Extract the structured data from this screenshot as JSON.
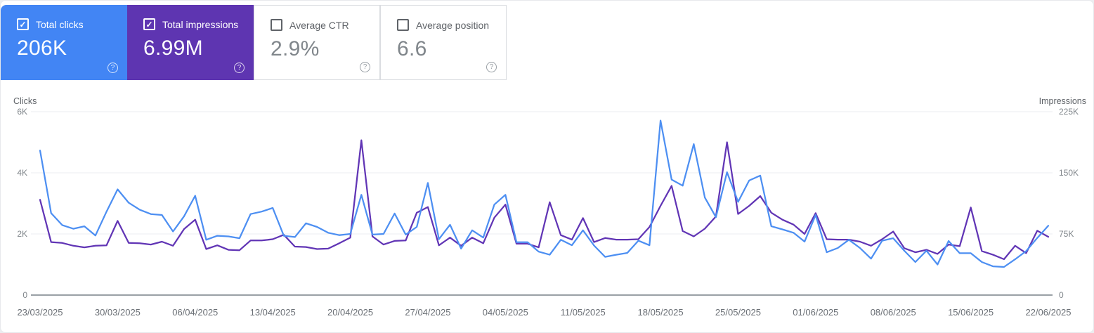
{
  "app": "Search Console Performance",
  "icons": {
    "help": "?",
    "check": "✓"
  },
  "colors": {
    "clicks_card_bg": "#4285f4",
    "impressions_card_bg": "#5e35b1",
    "clicks_line": "#4d8ff2",
    "impressions_line": "#6135b5",
    "gridline": "#ebedf0",
    "axis_line": "#9aa0a6",
    "tick_label": "#80868b",
    "date_label": "#6a6f75",
    "axis_title": "#5f6368"
  },
  "cards": [
    {
      "id": "total-clicks",
      "label": "Total clicks",
      "value": "206K",
      "checked": true,
      "style": "colored",
      "bg": "#4285f4"
    },
    {
      "id": "total-impressions",
      "label": "Total impressions",
      "value": "6.99M",
      "checked": true,
      "style": "colored",
      "bg": "#5e35b1"
    },
    {
      "id": "average-ctr",
      "label": "Average CTR",
      "value": "2.9%",
      "checked": false,
      "style": "plain",
      "bg": "#ffffff"
    },
    {
      "id": "average-position",
      "label": "Average position",
      "value": "6.6",
      "checked": false,
      "style": "plain",
      "bg": "#ffffff"
    }
  ],
  "chart_data": {
    "type": "line",
    "title": "",
    "grid": true,
    "legend_position": "none",
    "x_labels": [
      "23/03/2025",
      "30/03/2025",
      "06/04/2025",
      "13/04/2025",
      "20/04/2025",
      "27/04/2025",
      "04/05/2025",
      "11/05/2025",
      "18/05/2025",
      "25/05/2025",
      "01/06/2025",
      "08/06/2025",
      "15/06/2025",
      "22/06/2025"
    ],
    "left_axis": {
      "title": "Clicks",
      "ticks": [
        "0",
        "2K",
        "4K",
        "6K"
      ],
      "min": 0,
      "max": 6000
    },
    "right_axis": {
      "title": "Impressions",
      "ticks": [
        "0",
        "75K",
        "150K",
        "225K"
      ],
      "min": 0,
      "max": 225000
    },
    "series": [
      {
        "name": "Clicks",
        "axis": "left",
        "color": "#4d8ff2",
        "values": [
          4730,
          2680,
          2290,
          2170,
          2250,
          1950,
          2730,
          3460,
          3020,
          2790,
          2650,
          2620,
          2080,
          2580,
          3250,
          1810,
          1940,
          1920,
          1860,
          2650,
          2730,
          2850,
          1940,
          1900,
          2350,
          2230,
          2040,
          1960,
          2000,
          3280,
          1980,
          2000,
          2670,
          1980,
          2230,
          3670,
          1830,
          2300,
          1520,
          2120,
          1880,
          2960,
          3280,
          1730,
          1730,
          1420,
          1320,
          1810,
          1630,
          2120,
          1620,
          1250,
          1320,
          1380,
          1780,
          1630,
          5710,
          3780,
          3580,
          4940,
          3190,
          2550,
          4020,
          3050,
          3750,
          3910,
          2250,
          2150,
          2040,
          1750,
          2620,
          1400,
          1540,
          1810,
          1540,
          1190,
          1780,
          1860,
          1450,
          1080,
          1450,
          1000,
          1770,
          1370,
          1370,
          1080,
          940,
          920,
          1170,
          1440,
          1870,
          2270
        ]
      },
      {
        "name": "Impressions",
        "axis": "right",
        "color": "#6135b5",
        "values": [
          117000,
          65000,
          64000,
          60500,
          58500,
          60500,
          61000,
          91000,
          64000,
          63500,
          62000,
          65500,
          60500,
          81000,
          92500,
          56500,
          61000,
          55500,
          55000,
          67000,
          67000,
          68500,
          74000,
          59500,
          59000,
          56500,
          57000,
          63500,
          70500,
          190000,
          72000,
          62000,
          66500,
          67000,
          101000,
          108000,
          61000,
          70500,
          60500,
          70500,
          63500,
          95000,
          111000,
          63000,
          63000,
          58500,
          114000,
          73500,
          68000,
          94500,
          65000,
          70000,
          68000,
          68000,
          68500,
          83500,
          109500,
          134000,
          78500,
          72000,
          81500,
          96500,
          187500,
          99500,
          109500,
          121500,
          101000,
          92500,
          86500,
          75000,
          100500,
          68500,
          68000,
          68000,
          65500,
          60500,
          68500,
          78000,
          57500,
          52500,
          55500,
          50500,
          62000,
          60000,
          107500,
          54000,
          49500,
          44000,
          60500,
          51500,
          79000,
          71500
        ]
      }
    ]
  }
}
